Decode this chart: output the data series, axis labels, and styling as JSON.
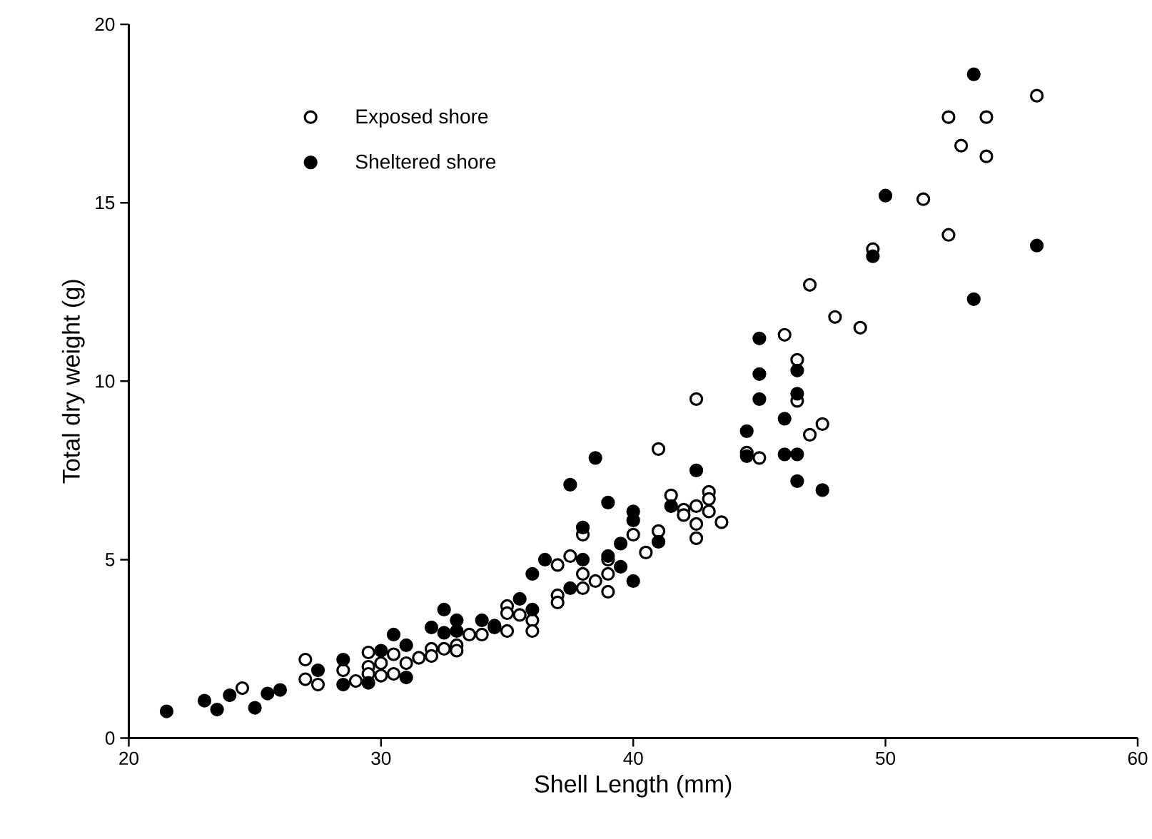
{
  "chart_data": {
    "type": "scatter",
    "xlabel": "Shell Length (mm)",
    "ylabel": "Total dry weight (g)",
    "xlim": [
      20,
      60
    ],
    "ylim": [
      0,
      20
    ],
    "xticks": [
      20,
      30,
      40,
      50,
      60
    ],
    "yticks": [
      0,
      5,
      10,
      15,
      20
    ],
    "grid": false,
    "legend": "top left",
    "marker": "circle",
    "series": [
      {
        "name": "Exposed shore",
        "color": "#000000",
        "x": [
          24.5,
          27,
          27,
          27.5,
          28.5,
          29,
          29.5,
          29.5,
          29.5,
          30,
          30,
          30.5,
          30.5,
          31,
          31.5,
          32,
          32,
          32.5,
          33,
          33,
          33.5,
          34,
          34.5,
          35,
          35,
          35,
          35.5,
          36,
          36,
          37,
          37,
          37,
          37.5,
          38,
          38,
          38,
          38.5,
          39,
          39,
          39,
          40,
          40.5,
          41,
          41,
          41.5,
          42,
          42,
          42.5,
          42.5,
          42.5,
          42.5,
          43,
          43,
          43,
          43.5,
          44.5,
          45,
          46,
          46.5,
          46.5,
          47,
          47.5,
          47,
          48,
          49,
          49.5,
          51.5,
          52.5,
          52.5,
          53,
          54,
          54,
          56
        ],
        "values": [
          1.4,
          2.2,
          1.65,
          1.5,
          1.9,
          1.6,
          2.4,
          2.0,
          1.8,
          2.1,
          1.75,
          2.35,
          1.8,
          2.1,
          2.25,
          2.5,
          2.3,
          2.5,
          2.6,
          2.45,
          2.9,
          2.9,
          3.1,
          3.7,
          3.5,
          3.0,
          3.45,
          3.3,
          3.0,
          4.0,
          3.8,
          4.85,
          5.1,
          4.6,
          4.2,
          5.7,
          4.4,
          4.6,
          4.1,
          5.0,
          5.7,
          5.2,
          5.8,
          8.1,
          6.8,
          6.4,
          6.25,
          6.5,
          6.0,
          5.6,
          9.5,
          6.9,
          6.7,
          6.35,
          6.05,
          8.0,
          7.85,
          11.3,
          10.6,
          9.45,
          8.5,
          8.8,
          12.7,
          11.8,
          11.5,
          13.7,
          15.1,
          14.1,
          17.4,
          16.6,
          17.4,
          16.3,
          18.0
        ]
      },
      {
        "name": "Sheltered shore",
        "color": "#000000",
        "x": [
          21.5,
          23,
          23.5,
          24,
          25,
          25.5,
          26,
          27.5,
          28.5,
          28.5,
          29.5,
          30,
          30.5,
          31,
          31,
          32,
          32.5,
          32.5,
          33,
          33,
          34,
          34.5,
          35.5,
          36,
          36,
          36.5,
          37.5,
          37.5,
          38,
          38,
          38.5,
          39,
          39,
          39.5,
          39.5,
          40,
          40,
          40,
          41,
          41.5,
          42.5,
          44.5,
          44.5,
          45,
          45,
          45,
          46,
          46,
          46.5,
          46.5,
          46.5,
          46.5,
          47.5,
          49.5,
          50,
          53.5,
          53.5,
          56
        ],
        "values": [
          0.75,
          1.05,
          0.8,
          1.2,
          0.85,
          1.25,
          1.35,
          1.9,
          2.2,
          1.5,
          1.55,
          2.45,
          2.9,
          2.6,
          1.7,
          3.1,
          3.6,
          2.95,
          3.3,
          3.0,
          3.3,
          3.15,
          3.9,
          3.6,
          4.6,
          5.0,
          7.1,
          4.2,
          5.0,
          5.9,
          7.85,
          6.6,
          5.1,
          5.45,
          4.8,
          6.35,
          6.1,
          4.4,
          5.5,
          6.5,
          7.5,
          8.6,
          7.9,
          11.2,
          10.2,
          9.5,
          8.95,
          7.95,
          10.3,
          9.65,
          7.95,
          7.2,
          6.95,
          13.5,
          15.2,
          18.6,
          12.3,
          13.8
        ]
      }
    ]
  }
}
